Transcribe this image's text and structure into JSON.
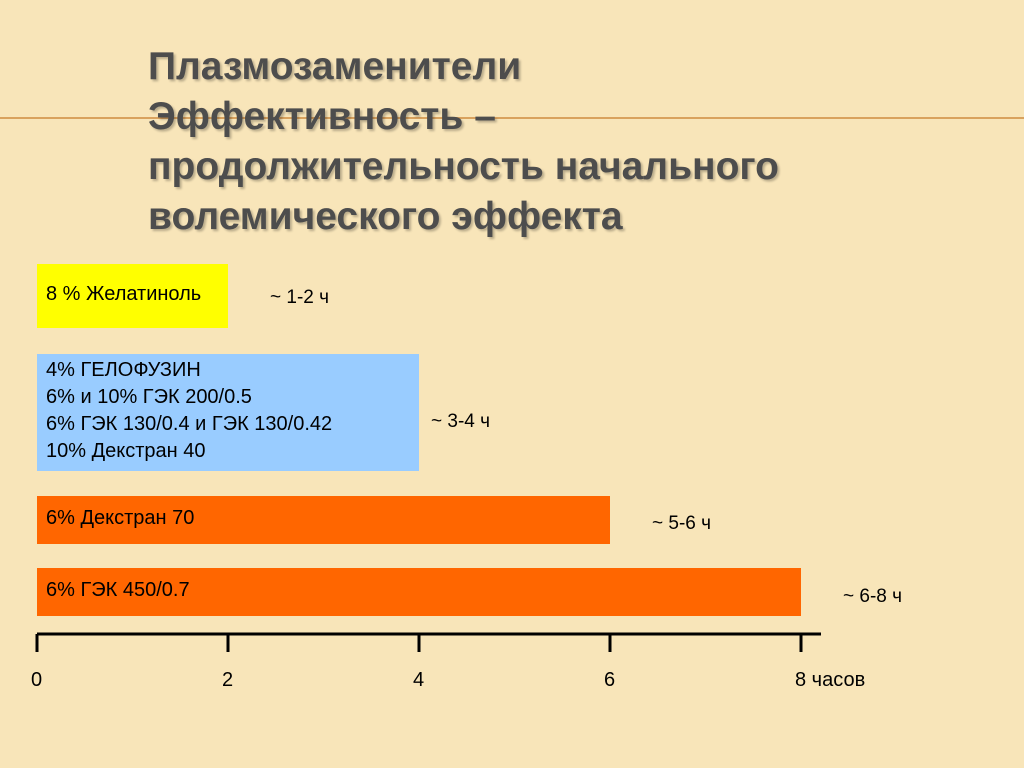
{
  "title": {
    "lines": [
      "Плазмозаменители",
      "Эффективность –",
      "продолжительность начального",
      "волемического эффекта"
    ]
  },
  "colors": {
    "background": "#f8e5b9",
    "yellow": "#ffff00",
    "blue": "#99ccff",
    "orange": "#ff6600",
    "axis": "#000000"
  },
  "chart_data": {
    "type": "bar",
    "orientation": "horizontal",
    "categories": [
      [
        "8 % Желатиноль"
      ],
      [
        "4% ГЕЛОФУЗИН",
        "6% и 10% ГЭК 200/0.5",
        "6% ГЭК 130/0.4 и ГЭК 130/0.42",
        "10% Декстран 40"
      ],
      [
        "6% Декстран 70"
      ],
      [
        "6% ГЭК 450/0.7"
      ]
    ],
    "values": [
      2,
      4,
      6,
      8
    ],
    "bar_colors": [
      "#ffff00",
      "#99ccff",
      "#ff6600",
      "#ff6600"
    ],
    "annotations": [
      "~ 1-2 ч",
      "~ 3-4 ч",
      "~ 5-6 ч",
      "~ 6-8 ч"
    ],
    "xlim": [
      0,
      8
    ],
    "xticks": [
      "0",
      "2",
      "4",
      "6",
      "8 часов"
    ],
    "grid": false
  }
}
